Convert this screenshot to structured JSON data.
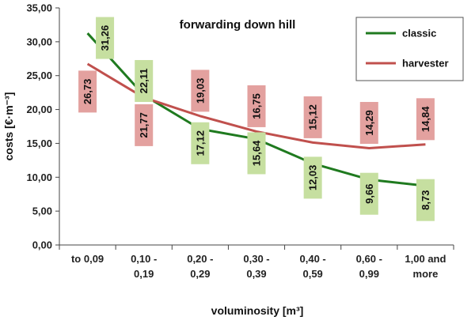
{
  "chart_data": {
    "type": "line",
    "title": "forwarding down hill",
    "xlabel": "voluminosity   [m³]",
    "ylabel": "costs   [€·m⁻³]",
    "ylim": [
      0,
      35
    ],
    "yticks": [
      "0,00",
      "5,00",
      "10,00",
      "15,00",
      "20,00",
      "25,00",
      "30,00",
      "35,00"
    ],
    "categories": [
      [
        "to 0,09"
      ],
      [
        "0,10 -",
        "0,19"
      ],
      [
        "0,20 -",
        "0,29"
      ],
      [
        "0,30 -",
        "0,39"
      ],
      [
        "0,40 -",
        "0,59"
      ],
      [
        "0,60 -",
        "0,99"
      ],
      [
        "1,00 and",
        "more"
      ]
    ],
    "grid": false,
    "legend_position": "top-right",
    "series": [
      {
        "name": "classic",
        "color": "#1f7a1f",
        "label_bg": "#c6dfa0",
        "values": [
          31.26,
          22.11,
          17.12,
          15.64,
          12.03,
          9.66,
          8.73
        ],
        "labels": [
          "31,26",
          "22,11",
          "17,12",
          "15,64",
          "12,03",
          "9,66",
          "8,73"
        ]
      },
      {
        "name": "harvester",
        "color": "#c0504d",
        "label_bg": "#e3a19f",
        "values": [
          26.73,
          21.77,
          19.03,
          16.75,
          15.12,
          14.29,
          14.84
        ],
        "labels": [
          "26,73",
          "21,77",
          "19,03",
          "16,75",
          "15,12",
          "14,29",
          "14,84"
        ]
      }
    ]
  }
}
